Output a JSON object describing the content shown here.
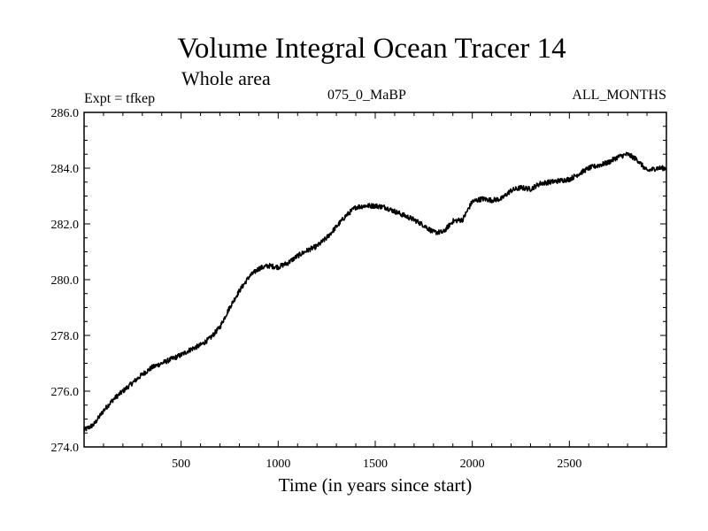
{
  "chart_data": {
    "type": "line",
    "title": "Volume Integral Ocean Tracer 14",
    "subtitle": "Whole area",
    "info_left": "Expt = tfkep",
    "info_center": "075_0_MaBP",
    "info_right": "ALL_MONTHS",
    "xlabel": "Time (in years since start)",
    "ylabel": "",
    "xlim": [
      0,
      3000
    ],
    "ylim": [
      274.0,
      286.0
    ],
    "x_ticks": [
      500,
      1000,
      1500,
      2000,
      2500
    ],
    "x_tick_labels": [
      "500",
      "1000",
      "1500",
      "2000",
      "2500"
    ],
    "y_ticks": [
      274.0,
      276.0,
      278.0,
      280.0,
      282.0,
      284.0,
      286.0
    ],
    "y_tick_labels": [
      "274.0",
      "276.0",
      "278.0",
      "280.0",
      "282.0",
      "284.0",
      "286.0"
    ],
    "grid": false,
    "series": [
      {
        "color": "#000000",
        "x": [
          0,
          50,
          100,
          150,
          200,
          250,
          300,
          350,
          400,
          450,
          500,
          550,
          600,
          650,
          700,
          750,
          800,
          850,
          900,
          950,
          1000,
          1050,
          1100,
          1150,
          1200,
          1250,
          1300,
          1350,
          1400,
          1450,
          1500,
          1550,
          1600,
          1650,
          1700,
          1750,
          1800,
          1850,
          1900,
          1950,
          2000,
          2050,
          2100,
          2150,
          2200,
          2250,
          2300,
          2350,
          2400,
          2450,
          2500,
          2550,
          2600,
          2650,
          2700,
          2750,
          2800,
          2850,
          2900,
          2950,
          3000
        ],
        "values": [
          274.6,
          274.8,
          275.3,
          275.7,
          276.0,
          276.3,
          276.6,
          276.85,
          277.0,
          277.15,
          277.3,
          277.5,
          277.65,
          277.9,
          278.3,
          279.0,
          279.6,
          280.1,
          280.4,
          280.5,
          280.45,
          280.6,
          280.85,
          281.05,
          281.2,
          281.5,
          281.9,
          282.3,
          282.6,
          282.65,
          282.65,
          282.6,
          282.45,
          282.3,
          282.15,
          281.95,
          281.7,
          281.7,
          282.1,
          282.15,
          282.8,
          282.9,
          282.85,
          282.9,
          283.2,
          283.3,
          283.25,
          283.45,
          283.5,
          283.55,
          283.6,
          283.8,
          284.0,
          284.1,
          284.2,
          284.4,
          284.5,
          284.3,
          283.9,
          284.0,
          284.0
        ]
      }
    ]
  }
}
